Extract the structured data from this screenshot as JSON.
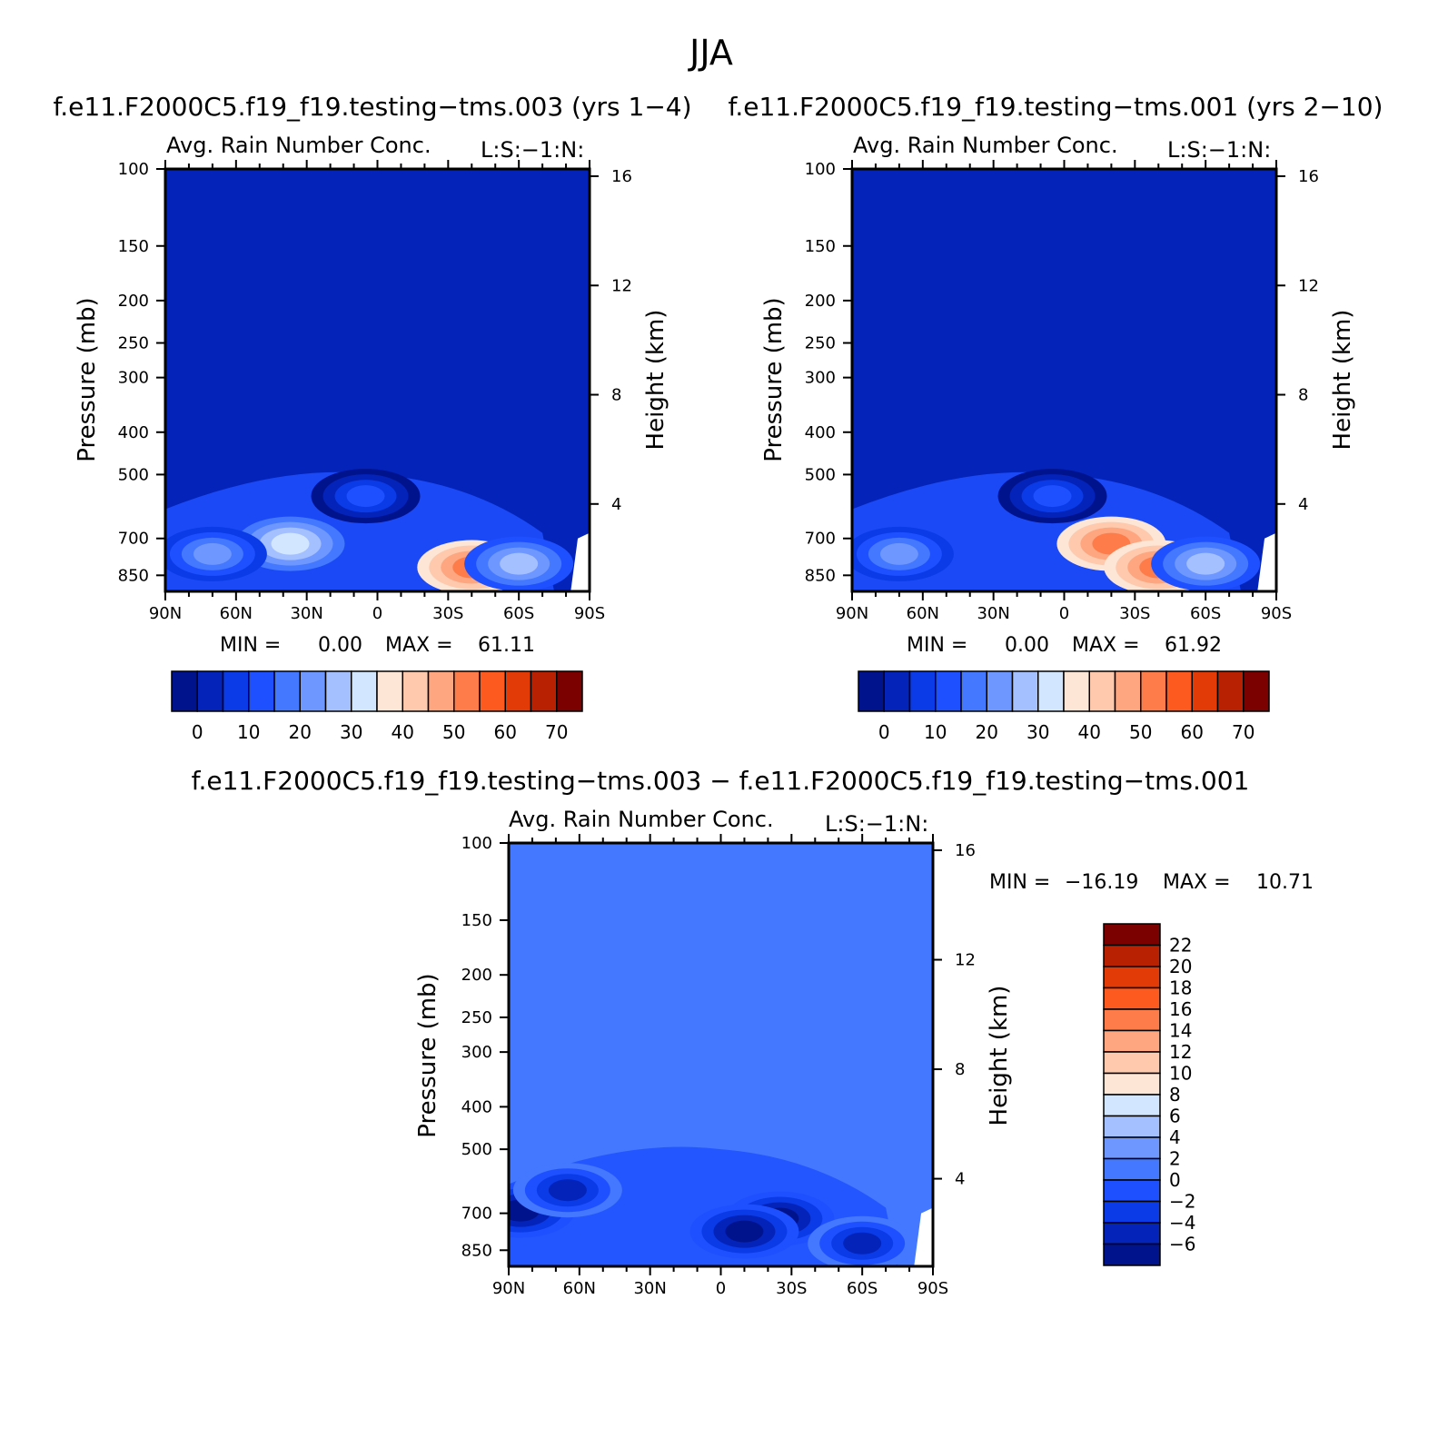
{
  "figure": {
    "title": "JJA"
  },
  "colors": {
    "background": "#0323b9",
    "diff_background": "#4378ff",
    "main_scale": [
      "#00138c",
      "#0323b9",
      "#0a3be6",
      "#1f50ff",
      "#4378ff",
      "#6e98ff",
      "#a5c0ff",
      "#d2e6ff",
      "#fde6d6",
      "#fec9ac",
      "#fda680",
      "#fd7c4a",
      "#fd5a20",
      "#e23b08",
      "#b82203",
      "#7b0000"
    ],
    "diff_scale": [
      "#00138c",
      "#0323b9",
      "#0a3be6",
      "#1f50ff",
      "#4378ff",
      "#6e98ff",
      "#a5c0ff",
      "#d2e6ff",
      "#fde6d6",
      "#fec9ac",
      "#fda680",
      "#fd7c4a",
      "#fd5a20",
      "#e23b08",
      "#b82203",
      "#7b0000"
    ]
  },
  "chart_data": [
    {
      "type": "heatmap",
      "case_title": "f.e11.F2000C5.f19_f19.testing−tms.003 (yrs 1−4)",
      "title": "Avg. Rain Number Conc.",
      "units": "L:S:−1:N:",
      "xlabel": "",
      "ylabel": "Pressure (mb)",
      "y2label": "Height (km)",
      "xticks": [
        "90N",
        "60N",
        "30N",
        "0",
        "30S",
        "60S",
        "90S"
      ],
      "x_range": [
        90,
        -90
      ],
      "yticks": [
        "100",
        "150",
        "200",
        "250",
        "300",
        "400",
        "500",
        "700",
        "850"
      ],
      "y_range_mb": [
        100,
        925
      ],
      "log_y": true,
      "y2ticks": [
        "16",
        "12",
        "8",
        "4"
      ],
      "stats": {
        "min_label": "MIN =",
        "min": "0.00",
        "max_label": "MAX =",
        "max": "61.11"
      },
      "colorbar": {
        "orientation": "horizontal",
        "labels": [
          "0",
          "10",
          "20",
          "30",
          "40",
          "50",
          "60",
          "70"
        ]
      },
      "features": [
        {
          "lat": 37,
          "p": 720,
          "value": 35
        },
        {
          "lat": -40,
          "p": 815,
          "value": 55
        },
        {
          "lat": 70,
          "p": 760,
          "value": 25
        },
        {
          "lat": 5,
          "p": 560,
          "value": 15
        },
        {
          "lat": -60,
          "p": 800,
          "value": 30
        }
      ]
    },
    {
      "type": "heatmap",
      "case_title": "f.e11.F2000C5.f19_f19.testing−tms.001 (yrs 2−10)",
      "title": "Avg. Rain Number Conc.",
      "units": "L:S:−1:N:",
      "xlabel": "",
      "ylabel": "Pressure (mb)",
      "y2label": "Height (km)",
      "xticks": [
        "90N",
        "60N",
        "30N",
        "0",
        "30S",
        "60S",
        "90S"
      ],
      "x_range": [
        90,
        -90
      ],
      "yticks": [
        "100",
        "150",
        "200",
        "250",
        "300",
        "400",
        "500",
        "700",
        "850"
      ],
      "y_range_mb": [
        100,
        925
      ],
      "log_y": true,
      "y2ticks": [
        "16",
        "12",
        "8",
        "4"
      ],
      "stats": {
        "min_label": "MIN =",
        "min": "0.00",
        "max_label": "MAX =",
        "max": "61.92"
      },
      "colorbar": {
        "orientation": "horizontal",
        "labels": [
          "0",
          "10",
          "20",
          "30",
          "40",
          "50",
          "60",
          "70"
        ]
      },
      "features": [
        {
          "lat": -20,
          "p": 720,
          "value": 58
        },
        {
          "lat": -40,
          "p": 815,
          "value": 57
        },
        {
          "lat": 70,
          "p": 760,
          "value": 25
        },
        {
          "lat": 5,
          "p": 560,
          "value": 15
        },
        {
          "lat": -60,
          "p": 800,
          "value": 30
        }
      ]
    },
    {
      "type": "heatmap",
      "case_title": "f.e11.F2000C5.f19_f19.testing−tms.003 − f.e11.F2000C5.f19_f19.testing−tms.001",
      "title": "Avg. Rain Number Conc.",
      "units": "L:S:−1:N:",
      "xlabel": "",
      "ylabel": "Pressure (mb)",
      "y2label": "Height (km)",
      "xticks": [
        "90N",
        "60N",
        "30N",
        "0",
        "30S",
        "60S",
        "90S"
      ],
      "x_range": [
        90,
        -90
      ],
      "yticks": [
        "100",
        "150",
        "200",
        "250",
        "300",
        "400",
        "500",
        "700",
        "850"
      ],
      "y_range_mb": [
        100,
        925
      ],
      "log_y": true,
      "y2ticks": [
        "16",
        "12",
        "8",
        "4"
      ],
      "stats": {
        "min_label": "MIN =",
        "min": "−16.19",
        "max_label": "MAX =",
        "max": "10.71"
      },
      "colorbar": {
        "orientation": "vertical",
        "labels": [
          "22",
          "20",
          "18",
          "16",
          "14",
          "12",
          "10",
          "8",
          "6",
          "4",
          "2",
          "0",
          "−2",
          "−4",
          "−6"
        ]
      },
      "features": [
        {
          "lat": 85,
          "p": 690,
          "value": -12
        },
        {
          "lat": -25,
          "p": 720,
          "value": -10
        },
        {
          "lat": -10,
          "p": 770,
          "value": -7
        },
        {
          "lat": -60,
          "p": 820,
          "value": -6
        },
        {
          "lat": 65,
          "p": 620,
          "value": -5
        }
      ]
    }
  ]
}
